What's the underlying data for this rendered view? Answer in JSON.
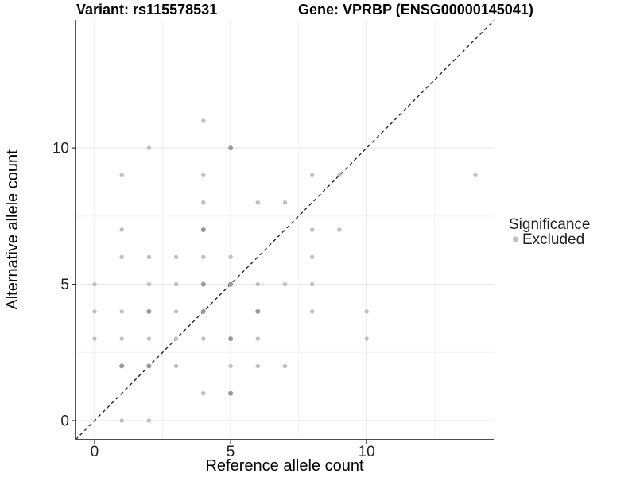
{
  "chart_data": {
    "type": "scatter",
    "title_left": "Variant: rs115578531",
    "title_right": "Gene: VPRBP (ENSG00000145041)",
    "xlabel": "Reference allele count",
    "ylabel": "Alternative allele count",
    "x_ticks": [
      "0",
      "5",
      "10"
    ],
    "x_tick_values": [
      0,
      5,
      10
    ],
    "y_ticks": [
      "0",
      "5",
      "10"
    ],
    "y_tick_values": [
      0,
      5,
      10
    ],
    "x_minor": [
      2.5,
      7.5,
      12.5
    ],
    "y_minor": [
      2.5,
      7.5,
      12.5
    ],
    "xlim": [
      -0.7,
      14.7
    ],
    "ylim": [
      -0.7,
      14.7
    ],
    "grid": true,
    "identity_line": {
      "style": "dashed",
      "from": -0.7,
      "to": 14.7
    },
    "legend": {
      "title": "Significance",
      "position": "right",
      "items": [
        {
          "label": "Excluded",
          "color": "#bfbfbf"
        }
      ]
    },
    "point_color_single": "#bfbfbf",
    "point_color_overlap": "#999999",
    "points": [
      [
        1,
        0,
        1
      ],
      [
        2,
        0,
        1
      ],
      [
        4,
        1,
        1
      ],
      [
        5,
        1,
        2
      ],
      [
        1,
        2,
        2
      ],
      [
        2,
        2,
        2
      ],
      [
        3,
        2,
        1
      ],
      [
        5,
        2,
        1
      ],
      [
        6,
        2,
        1
      ],
      [
        7,
        2,
        1
      ],
      [
        0,
        3,
        1
      ],
      [
        1,
        3,
        1
      ],
      [
        2,
        3,
        1
      ],
      [
        3,
        3,
        1
      ],
      [
        4,
        3,
        1
      ],
      [
        5,
        3,
        2
      ],
      [
        6,
        3,
        1
      ],
      [
        10,
        3,
        1
      ],
      [
        0,
        4,
        1
      ],
      [
        1,
        4,
        1
      ],
      [
        2,
        4,
        2
      ],
      [
        3,
        4,
        1
      ],
      [
        4,
        4,
        2
      ],
      [
        6,
        4,
        2
      ],
      [
        8,
        4,
        1
      ],
      [
        10,
        4,
        1
      ],
      [
        0,
        5,
        1
      ],
      [
        2,
        5,
        1
      ],
      [
        3,
        5,
        1
      ],
      [
        4,
        5,
        2
      ],
      [
        5,
        5,
        2
      ],
      [
        6,
        5,
        1
      ],
      [
        7,
        5,
        1
      ],
      [
        8,
        5,
        1
      ],
      [
        1,
        6,
        1
      ],
      [
        2,
        6,
        1
      ],
      [
        3,
        6,
        1
      ],
      [
        4,
        6,
        1
      ],
      [
        5,
        6,
        1
      ],
      [
        8,
        6,
        1
      ],
      [
        1,
        7,
        1
      ],
      [
        4,
        7,
        2
      ],
      [
        8,
        7,
        1
      ],
      [
        9,
        7,
        1
      ],
      [
        4,
        8,
        1
      ],
      [
        6,
        8,
        1
      ],
      [
        7,
        8,
        1
      ],
      [
        1,
        9,
        1
      ],
      [
        4,
        9,
        1
      ],
      [
        8,
        9,
        1
      ],
      [
        9,
        9,
        1
      ],
      [
        14,
        9,
        1
      ],
      [
        2,
        10,
        1
      ],
      [
        5,
        10,
        2
      ],
      [
        4,
        11,
        1
      ]
    ]
  }
}
